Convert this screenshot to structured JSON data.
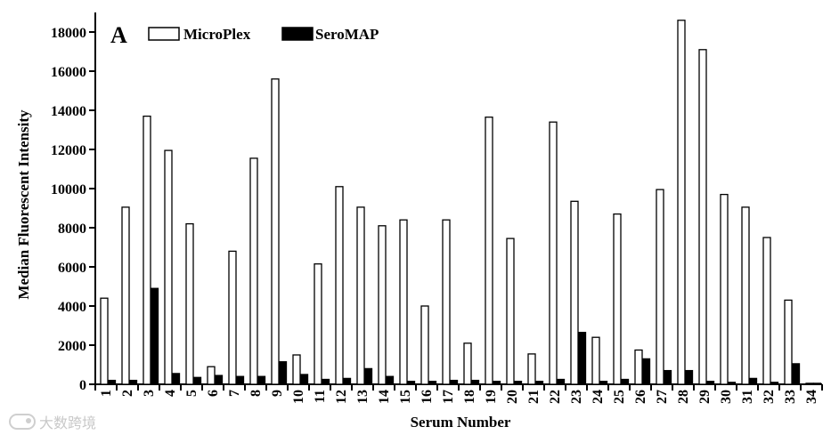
{
  "chart_data": {
    "type": "bar",
    "panel_label": "A",
    "title": "",
    "xlabel": "Serum Number",
    "ylabel": "Median Fluorescent Intensity",
    "ylim": [
      0,
      19000
    ],
    "yticks": [
      0,
      2000,
      4000,
      6000,
      8000,
      10000,
      12000,
      14000,
      16000,
      18000
    ],
    "grid": false,
    "legend_position": "top-left",
    "categories": [
      "1",
      "2",
      "3",
      "4",
      "5",
      "6",
      "7",
      "8",
      "9",
      "10",
      "11",
      "12",
      "13",
      "14",
      "15",
      "16",
      "17",
      "18",
      "19",
      "20",
      "21",
      "22",
      "23",
      "24",
      "25",
      "26",
      "27",
      "28",
      "29",
      "30",
      "31",
      "32",
      "33",
      "34"
    ],
    "series": [
      {
        "name": "MicroPlex",
        "fill": "#ffffff",
        "stroke": "#000000",
        "values": [
          4400,
          9050,
          13700,
          11950,
          8200,
          900,
          6800,
          11550,
          15600,
          1500,
          6150,
          10100,
          9050,
          8100,
          8400,
          4000,
          8400,
          2100,
          13650,
          7450,
          1550,
          13400,
          9350,
          2400,
          8700,
          1750,
          9950,
          18600,
          17100,
          9700,
          9050,
          7500,
          4300,
          50
        ]
      },
      {
        "name": "SeroMAP",
        "fill": "#000000",
        "stroke": "#000000",
        "values": [
          200,
          200,
          4900,
          550,
          350,
          450,
          400,
          400,
          1150,
          500,
          250,
          300,
          800,
          400,
          150,
          150,
          200,
          200,
          150,
          150,
          150,
          250,
          2650,
          150,
          250,
          1300,
          700,
          700,
          150,
          100,
          300,
          100,
          1050,
          50
        ]
      }
    ]
  },
  "watermark": {
    "text": "大数跨境"
  }
}
